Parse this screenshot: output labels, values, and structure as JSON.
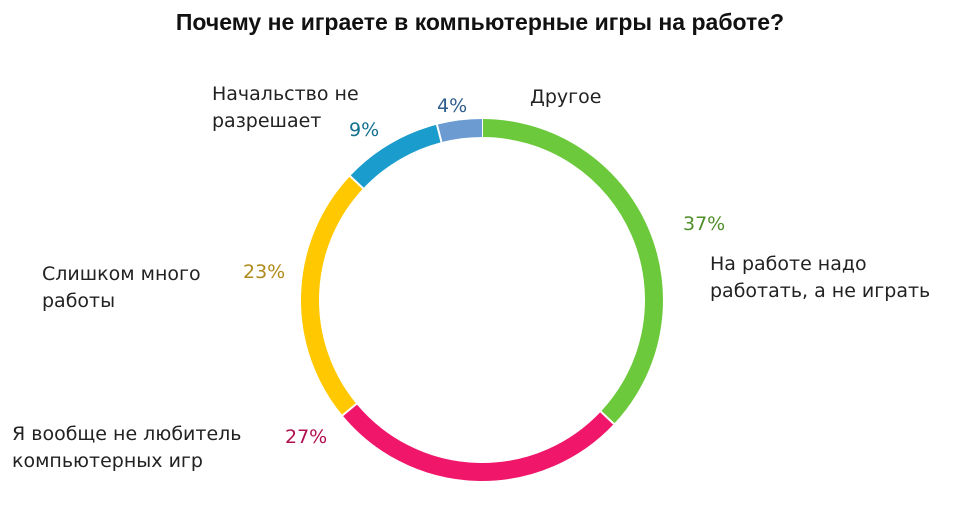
{
  "chart_data": {
    "type": "pie",
    "style": "ring",
    "title": "Почему не играете в компьютерные игры на работе?",
    "slices": [
      {
        "category": [
          "На работе надо",
          "работать, а не играть"
        ],
        "value": 37,
        "label": "37%",
        "color": "#6cc93c",
        "label_color": "#4f8f2a"
      },
      {
        "category": [
          "Я вообще не любитель",
          "компьютерных игр"
        ],
        "value": 27,
        "label": "27%",
        "color": "#f0176b",
        "label_color": "#b01050"
      },
      {
        "category": [
          "Слишком много",
          "работы"
        ],
        "value": 23,
        "label": "23%",
        "color": "#ffc800",
        "label_color": "#b08a1a"
      },
      {
        "category": [
          "Начальство не",
          "разрешает"
        ],
        "value": 9,
        "label": "9%",
        "color": "#1a9ccc",
        "label_color": "#12708f"
      },
      {
        "category": [
          "Другое"
        ],
        "value": 4,
        "label": "4%",
        "color": "#6b9bd1",
        "label_color": "#2d5d8a"
      }
    ],
    "legend": "none"
  }
}
